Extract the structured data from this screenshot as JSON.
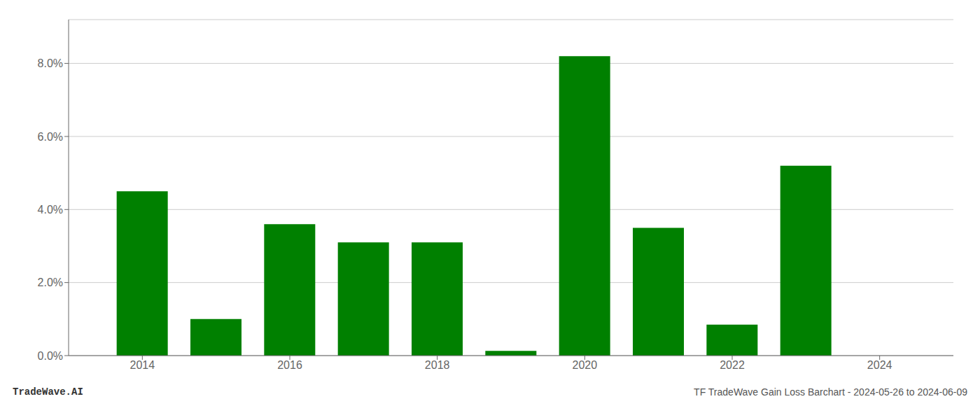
{
  "chart_data": {
    "type": "bar",
    "x": [
      2014,
      2015,
      2016,
      2017,
      2018,
      2019,
      2020,
      2021,
      2022,
      2023,
      2024
    ],
    "values": [
      0.045,
      0.01,
      0.036,
      0.031,
      0.031,
      0.0013,
      0.082,
      0.035,
      0.0085,
      0.052,
      0.0
    ],
    "color": "#008000",
    "xlim": [
      2013.0,
      2025.0
    ],
    "xticks": [
      2014,
      2016,
      2018,
      2020,
      2022,
      2024
    ],
    "ylim": [
      0.0,
      0.092
    ],
    "yticks": [
      {
        "value": 0.0,
        "label": "0.0%"
      },
      {
        "value": 0.02,
        "label": "2.0%"
      },
      {
        "value": 0.04,
        "label": "4.0%"
      },
      {
        "value": 0.06,
        "label": "6.0%"
      },
      {
        "value": 0.08,
        "label": "8.0%"
      }
    ],
    "grid": true,
    "annotations": [
      "TradeWave.AI",
      "TF TradeWave Gain Loss Barchart - 2024-05-26 to 2024-06-09"
    ]
  }
}
